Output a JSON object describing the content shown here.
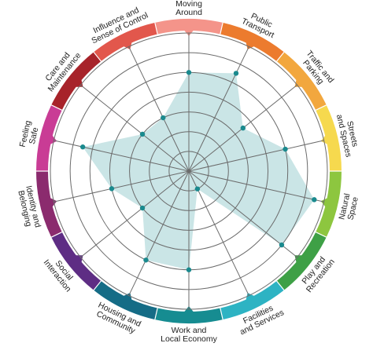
{
  "chart_data": {
    "type": "radar",
    "title": "",
    "scale": {
      "min": 0,
      "max": 7,
      "rings": 7
    },
    "grid": true,
    "categories": [
      {
        "label": [
          "Moving",
          "Around"
        ],
        "color": "#F4948A"
      },
      {
        "label": [
          "Public",
          "Transport"
        ],
        "color": "#EC7B2E"
      },
      {
        "label": [
          "Traffic and",
          "Parking"
        ],
        "color": "#F2A73E"
      },
      {
        "label": [
          "Streets",
          "and Spaces"
        ],
        "color": "#F6D94E"
      },
      {
        "label": [
          "Natural",
          "Space"
        ],
        "color": "#8DC63F"
      },
      {
        "label": [
          "Play and",
          "Recreation"
        ],
        "color": "#3EA046"
      },
      {
        "label": [
          "Facilities",
          "and Services"
        ],
        "color": "#2DB3C3"
      },
      {
        "label": [
          "Work and",
          "Local Economy"
        ],
        "color": "#168C91"
      },
      {
        "label": [
          "Housing and",
          "Community"
        ],
        "color": "#156C86"
      },
      {
        "label": [
          "Social",
          "Interaction"
        ],
        "color": "#5E2D84"
      },
      {
        "label": [
          "Identity and",
          "Belonging"
        ],
        "color": "#8B2B6E"
      },
      {
        "label": [
          "Feeling",
          "Safe"
        ],
        "color": "#C93C95"
      },
      {
        "label": [
          "Care and",
          "Maintenance"
        ],
        "color": "#A7232A"
      },
      {
        "label": [
          "Influence and",
          "Sense of Control"
        ],
        "color": "#E2574C"
      }
    ],
    "values": [
      5,
      5.5,
      3.5,
      5,
      6.5,
      6,
      1,
      5,
      5,
      3,
      4,
      5.5,
      3,
      3
    ]
  }
}
